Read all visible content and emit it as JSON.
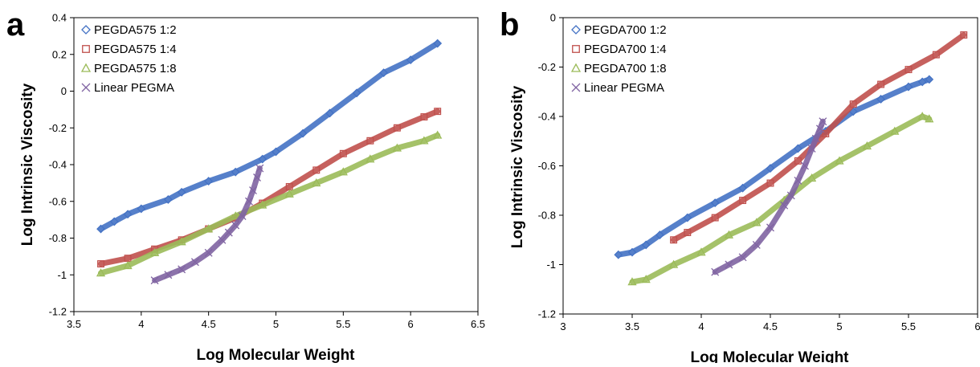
{
  "chart_data": [
    {
      "type": "scatter",
      "panel_label": "a",
      "xlabel": "Log Molecular Weight",
      "ylabel": "Log Intrinsic Viscosity",
      "xlim": [
        3.5,
        6.5
      ],
      "ylim": [
        -1.2,
        0.4
      ],
      "xticks": [
        "3.5",
        "4",
        "4.5",
        "5",
        "5.5",
        "6",
        "6.5"
      ],
      "yticks": [
        "-1.2",
        "-1",
        "-0.8",
        "-0.6",
        "-0.4",
        "-0.2",
        "0",
        "0.2",
        "0.4"
      ],
      "legend_position": "top-left",
      "grid": false,
      "series": [
        {
          "name": "PEGDA575 1:2",
          "color": "#4472c4",
          "marker": "diamond",
          "x": [
            3.7,
            3.8,
            3.9,
            4.0,
            4.2,
            4.3,
            4.5,
            4.7,
            4.9,
            5.0,
            5.2,
            5.4,
            5.6,
            5.8,
            6.0,
            6.2
          ],
          "y": [
            -0.75,
            -0.71,
            -0.67,
            -0.64,
            -0.59,
            -0.55,
            -0.49,
            -0.44,
            -0.37,
            -0.33,
            -0.23,
            -0.12,
            -0.01,
            0.1,
            0.17,
            0.26
          ]
        },
        {
          "name": "PEGDA575 1:4",
          "color": "#c0504d",
          "marker": "square",
          "x": [
            3.7,
            3.9,
            4.1,
            4.3,
            4.5,
            4.7,
            4.9,
            5.1,
            5.3,
            5.5,
            5.7,
            5.9,
            6.1,
            6.2
          ],
          "y": [
            -0.94,
            -0.91,
            -0.86,
            -0.81,
            -0.75,
            -0.69,
            -0.61,
            -0.52,
            -0.43,
            -0.34,
            -0.27,
            -0.2,
            -0.14,
            -0.11
          ]
        },
        {
          "name": "PEGDA575 1:8",
          "color": "#9bbb59",
          "marker": "triangle",
          "x": [
            3.7,
            3.9,
            4.1,
            4.3,
            4.5,
            4.7,
            4.9,
            5.1,
            5.3,
            5.5,
            5.7,
            5.9,
            6.1,
            6.2
          ],
          "y": [
            -0.99,
            -0.95,
            -0.88,
            -0.82,
            -0.75,
            -0.68,
            -0.62,
            -0.56,
            -0.5,
            -0.44,
            -0.37,
            -0.31,
            -0.27,
            -0.24
          ]
        },
        {
          "name": "Linear PEGMA",
          "color": "#8064a2",
          "marker": "x",
          "x": [
            4.1,
            4.2,
            4.3,
            4.4,
            4.5,
            4.6,
            4.65,
            4.7,
            4.75,
            4.8,
            4.83,
            4.86,
            4.88
          ],
          "y": [
            -1.03,
            -1.0,
            -0.97,
            -0.93,
            -0.88,
            -0.81,
            -0.77,
            -0.73,
            -0.68,
            -0.6,
            -0.54,
            -0.47,
            -0.42
          ]
        }
      ]
    },
    {
      "type": "scatter",
      "panel_label": "b",
      "xlabel": "Log Molecular Weight",
      "ylabel": "Log Intrinsic Viscosity",
      "xlim": [
        3,
        6
      ],
      "ylim": [
        -1.2,
        0
      ],
      "xticks": [
        "3",
        "3.5",
        "4",
        "4.5",
        "5",
        "5.5",
        "6"
      ],
      "yticks": [
        "-1.2",
        "-1",
        "-0.8",
        "-0.6",
        "-0.4",
        "-0.2",
        "0"
      ],
      "legend_position": "top-left",
      "grid": false,
      "series": [
        {
          "name": "PEGDA700 1:2",
          "color": "#4472c4",
          "marker": "diamond",
          "x": [
            3.4,
            3.5,
            3.6,
            3.7,
            3.9,
            4.1,
            4.3,
            4.5,
            4.7,
            4.9,
            5.1,
            5.3,
            5.5,
            5.6,
            5.65
          ],
          "y": [
            -0.96,
            -0.95,
            -0.92,
            -0.88,
            -0.81,
            -0.75,
            -0.69,
            -0.61,
            -0.53,
            -0.46,
            -0.38,
            -0.33,
            -0.28,
            -0.26,
            -0.25
          ]
        },
        {
          "name": "PEGDA700 1:4",
          "color": "#c0504d",
          "marker": "square",
          "x": [
            3.8,
            3.9,
            4.1,
            4.3,
            4.5,
            4.7,
            4.9,
            5.1,
            5.3,
            5.5,
            5.7,
            5.9
          ],
          "y": [
            -0.9,
            -0.87,
            -0.81,
            -0.74,
            -0.67,
            -0.58,
            -0.47,
            -0.35,
            -0.27,
            -0.21,
            -0.15,
            -0.07
          ]
        },
        {
          "name": "PEGDA700 1:8",
          "color": "#9bbb59",
          "marker": "triangle",
          "x": [
            3.5,
            3.6,
            3.8,
            4.0,
            4.2,
            4.4,
            4.6,
            4.8,
            5.0,
            5.2,
            5.4,
            5.6,
            5.65
          ],
          "y": [
            -1.07,
            -1.06,
            -1.0,
            -0.95,
            -0.88,
            -0.83,
            -0.74,
            -0.65,
            -0.58,
            -0.52,
            -0.46,
            -0.4,
            -0.41
          ]
        },
        {
          "name": "Linear PEGMA",
          "color": "#8064a2",
          "marker": "x",
          "x": [
            4.1,
            4.2,
            4.3,
            4.4,
            4.5,
            4.6,
            4.65,
            4.7,
            4.75,
            4.8,
            4.83,
            4.86,
            4.88
          ],
          "y": [
            -1.03,
            -1.0,
            -0.97,
            -0.92,
            -0.85,
            -0.76,
            -0.72,
            -0.66,
            -0.6,
            -0.53,
            -0.49,
            -0.45,
            -0.42
          ]
        }
      ]
    }
  ]
}
